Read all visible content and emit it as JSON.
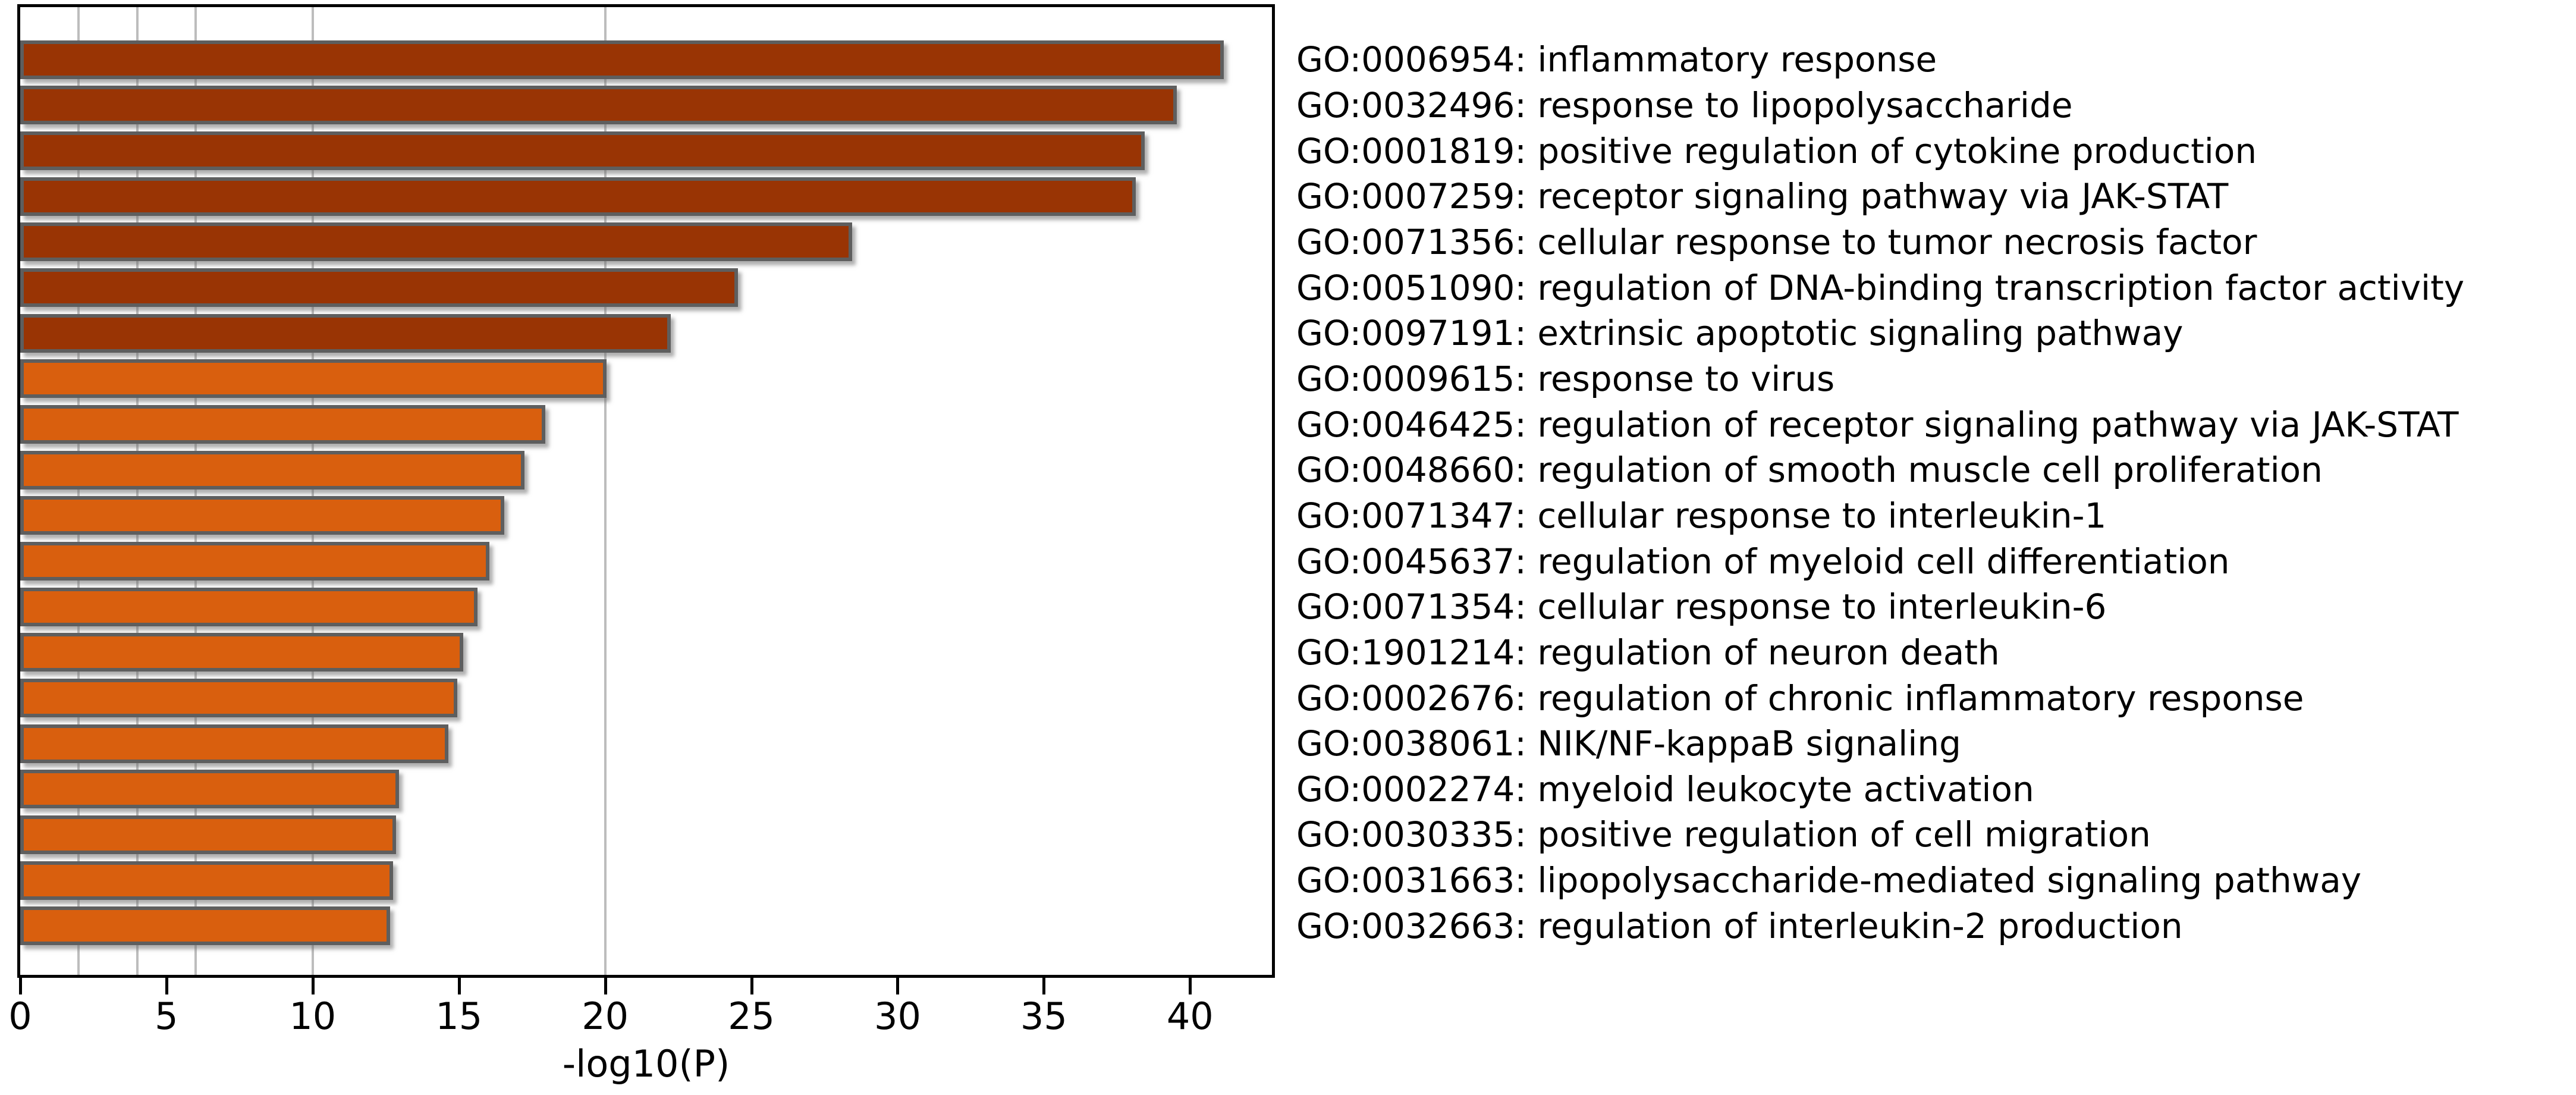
{
  "chart_data": {
    "type": "bar",
    "orientation": "horizontal",
    "title": "",
    "xlabel": "-log10(P)",
    "ylabel": "",
    "xlim": [
      0,
      42.8
    ],
    "x_ticks": [
      0,
      5,
      10,
      15,
      20,
      25,
      30,
      35,
      40
    ],
    "gridlines_at": [
      2,
      4,
      6,
      10,
      20
    ],
    "legend": "none",
    "palette": {
      "p_gt_20": "#993404",
      "p_10_20": "#D95F0E",
      "bar_outline": "#5E5E5E",
      "gridline": "#BDBDBD",
      "axis": "#000000"
    },
    "bars": [
      {
        "label": "GO:0006954: inflammatory response",
        "value": 40.9,
        "color": "#993404"
      },
      {
        "label": "GO:0032496: response to lipopolysaccharide",
        "value": 39.3,
        "color": "#993404"
      },
      {
        "label": "GO:0001819: positive regulation of cytokine production",
        "value": 38.2,
        "color": "#993404"
      },
      {
        "label": "GO:0007259: receptor signaling pathway via JAK-STAT",
        "value": 37.9,
        "color": "#993404"
      },
      {
        "label": "GO:0071356: cellular response to tumor necrosis factor",
        "value": 28.2,
        "color": "#993404"
      },
      {
        "label": "GO:0051090: regulation of DNA-binding transcription factor activity",
        "value": 24.3,
        "color": "#993404"
      },
      {
        "label": "GO:0097191: extrinsic apoptotic signaling pathway",
        "value": 22.0,
        "color": "#993404"
      },
      {
        "label": "GO:0009615: response to virus",
        "value": 19.8,
        "color": "#D95F0E"
      },
      {
        "label": "GO:0046425: regulation of receptor signaling pathway via JAK-STAT",
        "value": 17.7,
        "color": "#D95F0E"
      },
      {
        "label": "GO:0048660: regulation of smooth muscle cell proliferation",
        "value": 17.0,
        "color": "#D95F0E"
      },
      {
        "label": "GO:0071347: cellular response to interleukin-1",
        "value": 16.3,
        "color": "#D95F0E"
      },
      {
        "label": "GO:0045637: regulation of myeloid cell differentiation",
        "value": 15.8,
        "color": "#D95F0E"
      },
      {
        "label": "GO:0071354: cellular response to interleukin-6",
        "value": 15.4,
        "color": "#D95F0E"
      },
      {
        "label": "GO:1901214: regulation of neuron death",
        "value": 14.9,
        "color": "#D95F0E"
      },
      {
        "label": "GO:0002676: regulation of chronic inflammatory response",
        "value": 14.7,
        "color": "#D95F0E"
      },
      {
        "label": "GO:0038061: NIK/NF-kappaB signaling",
        "value": 14.4,
        "color": "#D95F0E"
      },
      {
        "label": "GO:0002274: myeloid leukocyte activation",
        "value": 12.7,
        "color": "#D95F0E"
      },
      {
        "label": "GO:0030335: positive regulation of cell migration",
        "value": 12.6,
        "color": "#D95F0E"
      },
      {
        "label": "GO:0031663: lipopolysaccharide-mediated signaling pathway",
        "value": 12.5,
        "color": "#D95F0E"
      },
      {
        "label": "GO:0032663: regulation of interleukin-2 production",
        "value": 12.4,
        "color": "#D95F0E"
      }
    ]
  }
}
